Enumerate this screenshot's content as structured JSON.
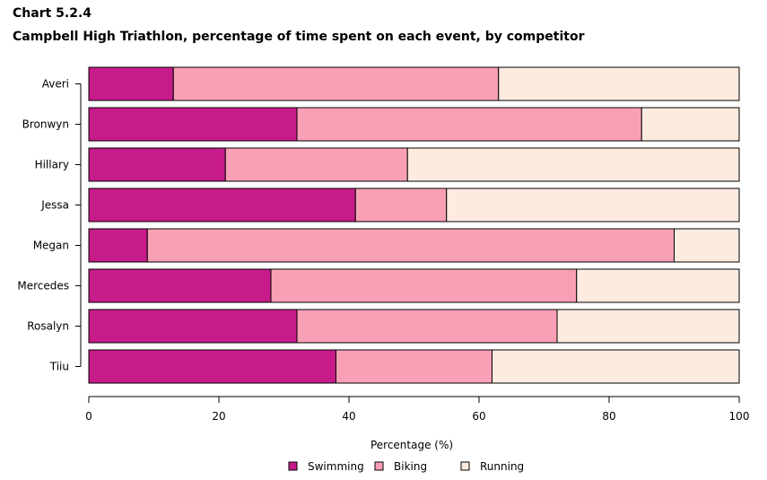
{
  "chart_data": {
    "type": "bar",
    "orientation": "horizontal",
    "stacked": true,
    "title": "Chart 5.2.4",
    "subtitle": "Campbell High Triathlon, percentage of time spent on each event, by competitor",
    "xlabel": "Percentage (%)",
    "ylabel": "",
    "xlim": [
      0,
      100
    ],
    "xticks": [
      0,
      20,
      40,
      60,
      80,
      100
    ],
    "categories": [
      "Averi",
      "Bronwyn",
      "Hillary",
      "Jessa",
      "Megan",
      "Mercedes",
      "Rosalyn",
      "Tiiu"
    ],
    "series": [
      {
        "name": "Swimming",
        "color": "#c71b8a",
        "values": [
          13,
          32,
          21,
          41,
          9,
          28,
          32,
          38
        ]
      },
      {
        "name": "Biking",
        "color": "#f9a0b6",
        "values": [
          50,
          53,
          28,
          14,
          81,
          47,
          40,
          24
        ]
      },
      {
        "name": "Running",
        "color": "#fdebe0",
        "values": [
          37,
          15,
          51,
          45,
          10,
          25,
          28,
          38
        ]
      }
    ],
    "grid": false,
    "legend_position": "bottom"
  }
}
